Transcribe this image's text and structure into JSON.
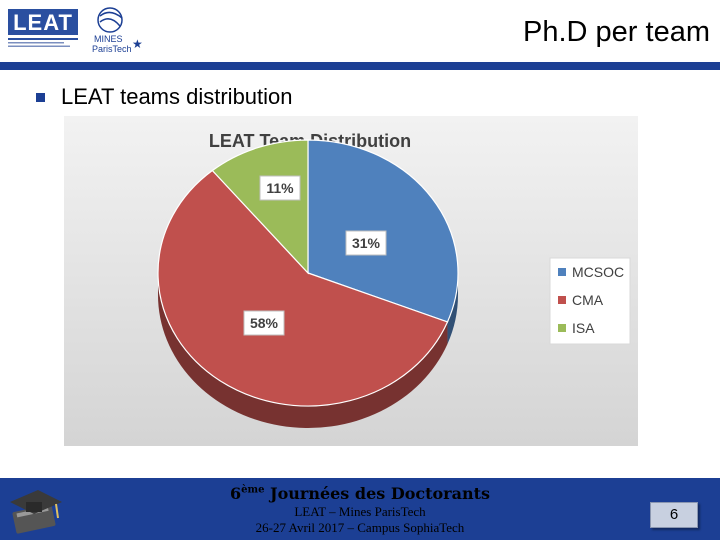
{
  "header": {
    "title": "Ph.D per team",
    "logo_leat_text": "LEAT",
    "logo_mines_text": "MINES ParisTech"
  },
  "colors": {
    "brand_blue": "#1c3f94",
    "mcsoc": "#4f81bd",
    "cma": "#c0504d",
    "isa": "#9bbb59"
  },
  "bullet": {
    "text": "LEAT teams distribution"
  },
  "chart_data": {
    "type": "pie",
    "title": "LEAT Team Distribution",
    "categories": [
      "MCSOC",
      "CMA",
      "ISA"
    ],
    "values": [
      31,
      58,
      11
    ],
    "labels": [
      "31%",
      "58%",
      "11%"
    ],
    "colors": [
      "#4f81bd",
      "#c0504d",
      "#9bbb59"
    ],
    "legend_position": "right",
    "style": "3d"
  },
  "footer": {
    "title_prefix": "6",
    "title_sup": "ème",
    "title_suffix": " Journées des Doctorants",
    "line1": "LEAT – Mines ParisTech",
    "line2": "26-27 Avril 2017 – Campus SophiaTech",
    "page_number": "6",
    "icon": "graduation-cap-icon"
  }
}
